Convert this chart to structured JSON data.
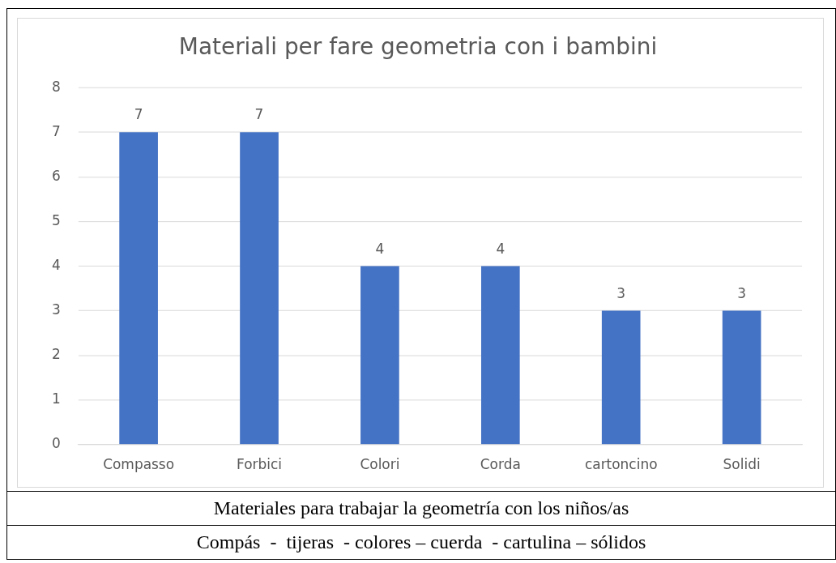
{
  "chart_data": {
    "type": "bar",
    "title": "Materiali per fare geometria con i bambini",
    "categories": [
      "Compasso",
      "Forbici",
      "Colori",
      "Corda",
      "cartoncino",
      "Solidi"
    ],
    "values": [
      7,
      7,
      4,
      4,
      3,
      3
    ],
    "color": "#4472c4",
    "ylim": [
      0,
      8
    ],
    "yticks": [
      0,
      1,
      2,
      3,
      4,
      5,
      6,
      7,
      8
    ],
    "grid": "y",
    "data_labels": true,
    "legend": false,
    "annotations": [
      "Materiales para trabajar la geometría con los niños/as",
      "Compás  -  tijeras  - colores – cuerda  - cartulina – sólidos"
    ]
  }
}
